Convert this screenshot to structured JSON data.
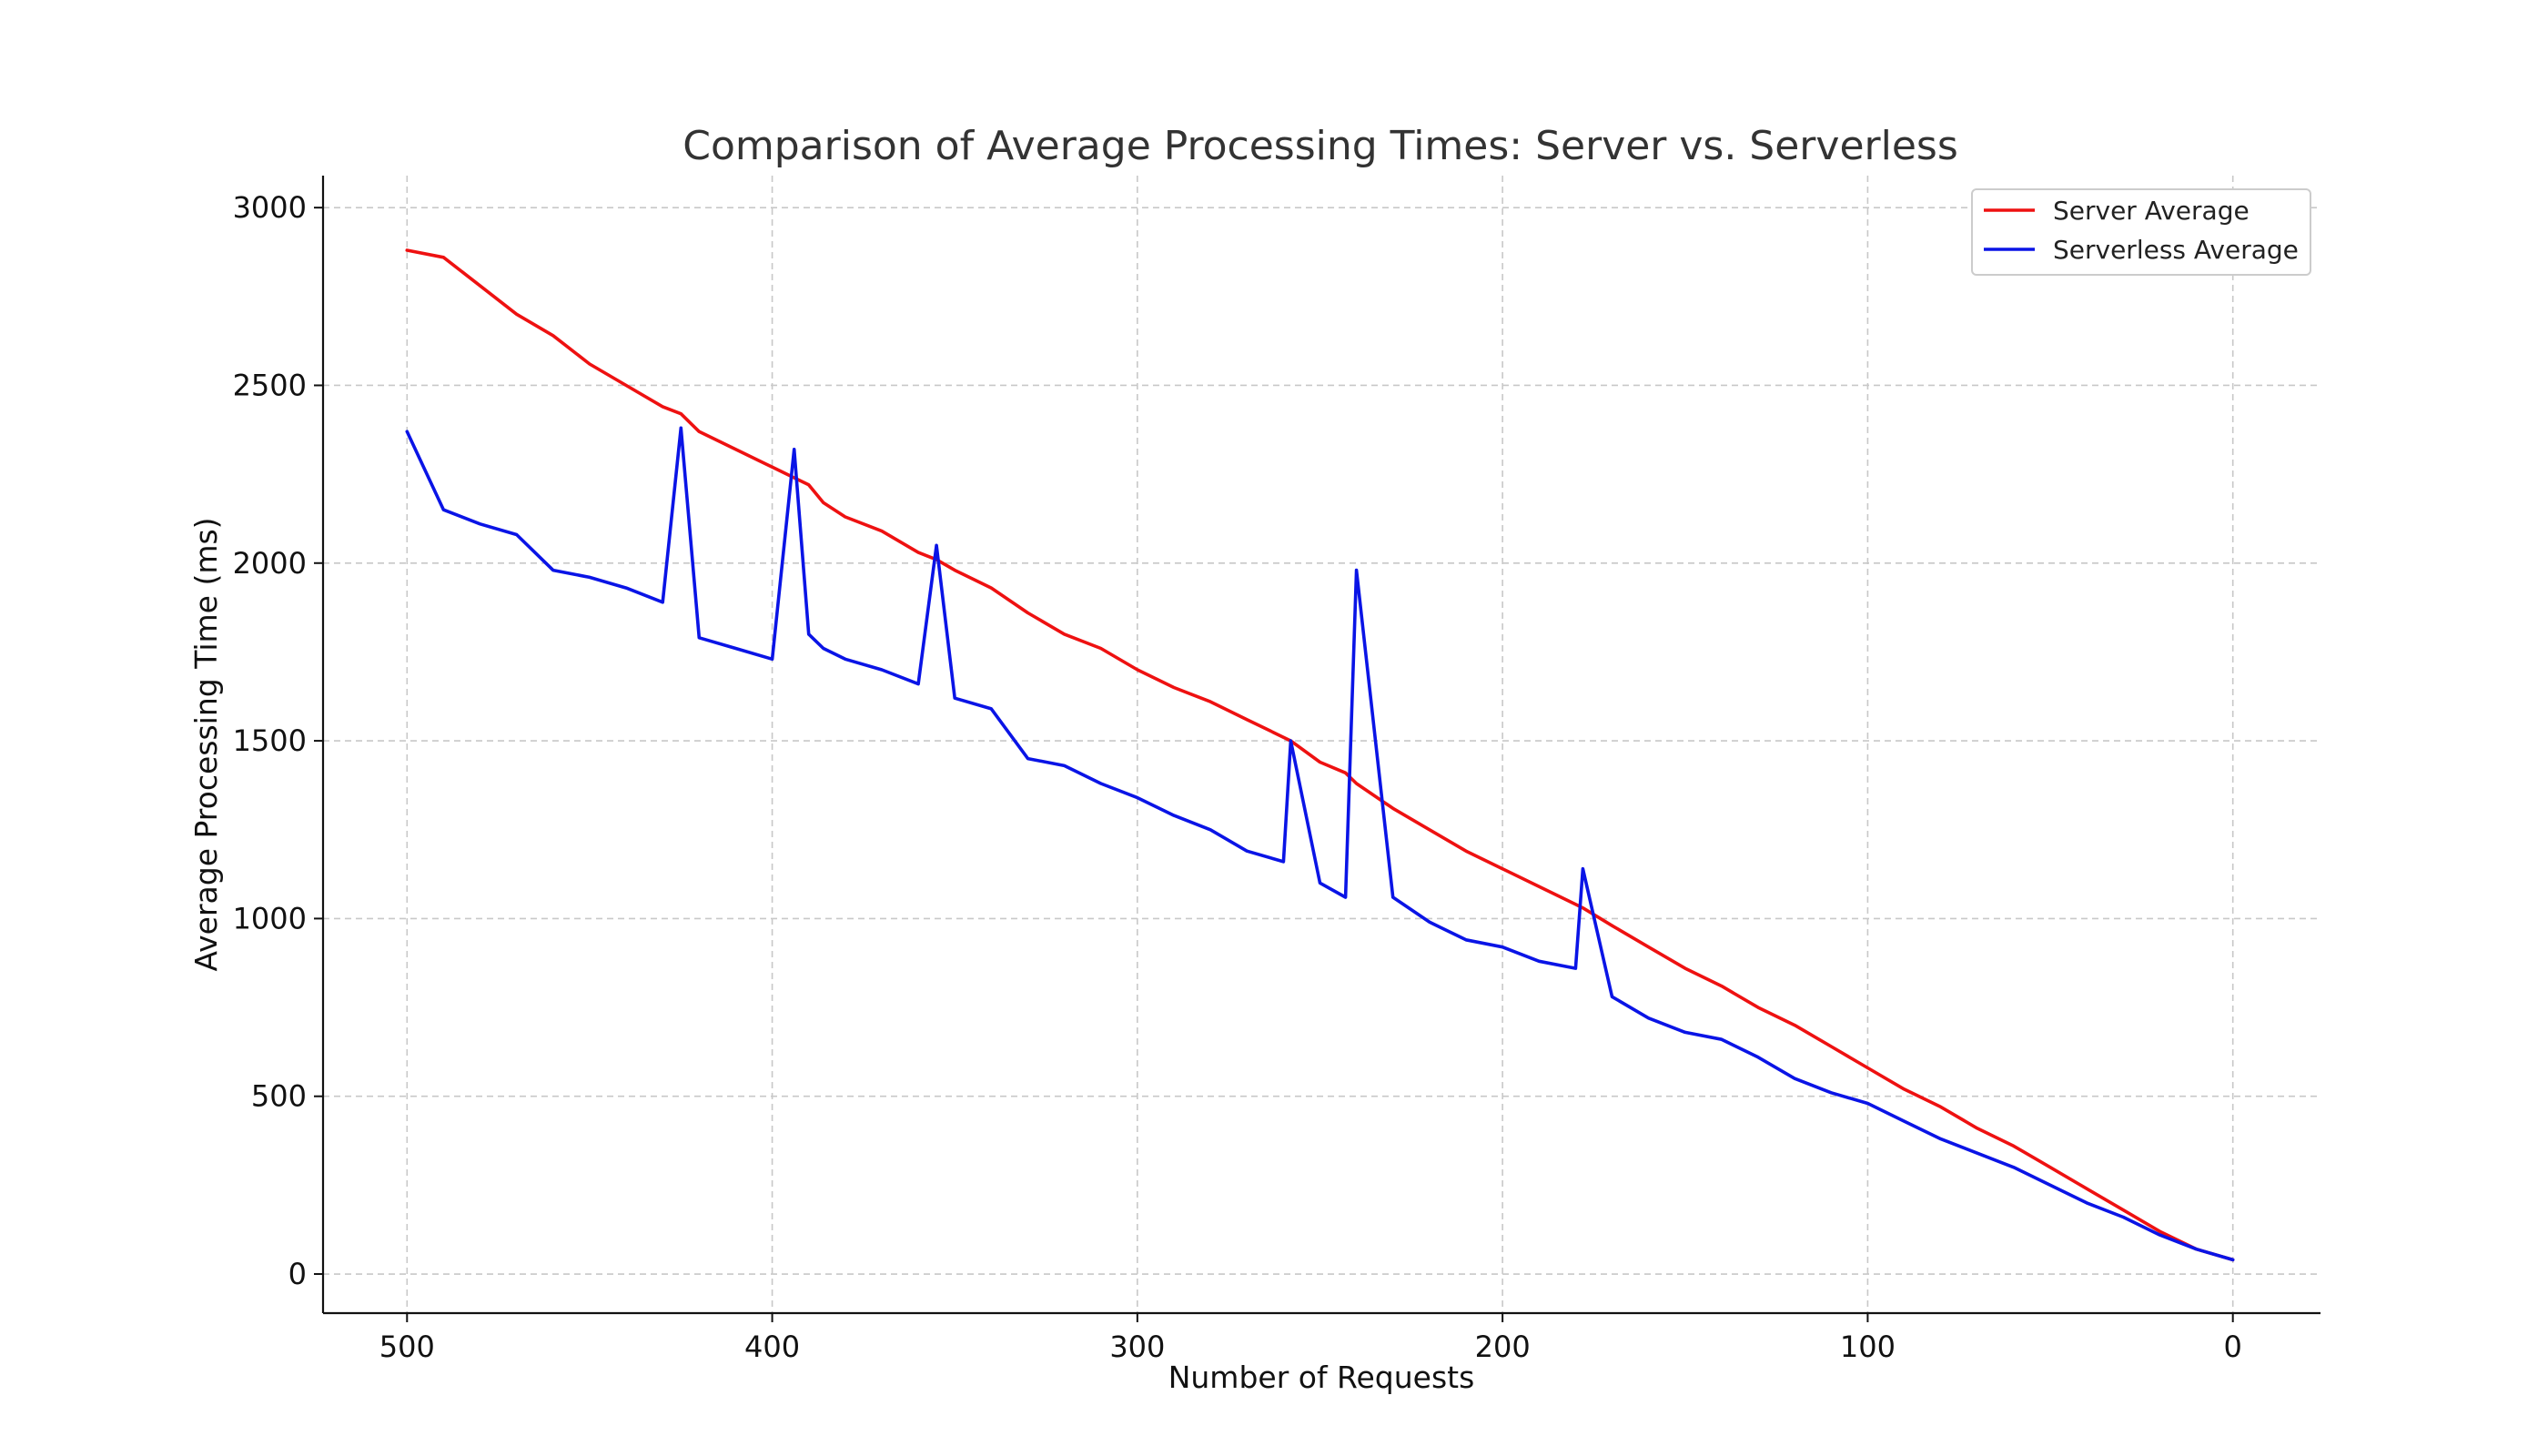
{
  "chart_data": {
    "type": "line",
    "title": "Comparison of Average Processing Times: Server vs. Serverless",
    "xlabel": "Number of Requests",
    "ylabel": "Average Processing Time (ms)",
    "x_inverted": true,
    "xlim": [
      523,
      -24
    ],
    "ylim": [
      -110,
      3090
    ],
    "xticks": [
      500,
      400,
      300,
      200,
      100,
      0
    ],
    "yticks": [
      0,
      500,
      1000,
      1500,
      2000,
      2500,
      3000
    ],
    "grid": true,
    "legend_position": "top-right",
    "x": [
      500,
      490,
      480,
      470,
      460,
      450,
      440,
      430,
      425,
      420,
      410,
      400,
      394,
      390,
      386,
      380,
      370,
      360,
      355,
      350,
      340,
      330,
      320,
      310,
      300,
      290,
      280,
      270,
      260,
      258,
      250,
      243,
      240,
      230,
      220,
      210,
      200,
      190,
      180,
      178,
      170,
      160,
      150,
      140,
      130,
      120,
      110,
      100,
      90,
      80,
      70,
      60,
      50,
      40,
      30,
      20,
      10,
      0
    ],
    "series": [
      {
        "name": "Server Average",
        "color": "#ee1111",
        "values": [
          2880,
          2860,
          2780,
          2700,
          2640,
          2560,
          2500,
          2440,
          2420,
          2370,
          2320,
          2270,
          2240,
          2220,
          2170,
          2130,
          2090,
          2030,
          2010,
          1980,
          1930,
          1860,
          1800,
          1760,
          1700,
          1650,
          1610,
          1560,
          1510,
          1500,
          1440,
          1410,
          1380,
          1310,
          1250,
          1190,
          1140,
          1090,
          1040,
          1030,
          980,
          920,
          860,
          810,
          750,
          700,
          640,
          580,
          520,
          470,
          410,
          360,
          300,
          240,
          180,
          120,
          70,
          40
        ]
      },
      {
        "name": "Serverless Average",
        "color": "#0a14e6",
        "values": [
          2370,
          2150,
          2110,
          2080,
          1980,
          1960,
          1930,
          1890,
          2380,
          1790,
          1760,
          1730,
          2320,
          1800,
          1760,
          1730,
          1700,
          1660,
          2050,
          1620,
          1590,
          1450,
          1430,
          1380,
          1340,
          1290,
          1250,
          1190,
          1160,
          1500,
          1100,
          1060,
          1980,
          1060,
          990,
          940,
          920,
          880,
          860,
          1140,
          780,
          720,
          680,
          660,
          610,
          550,
          510,
          480,
          430,
          380,
          340,
          300,
          250,
          200,
          160,
          110,
          70,
          40
        ]
      }
    ]
  }
}
